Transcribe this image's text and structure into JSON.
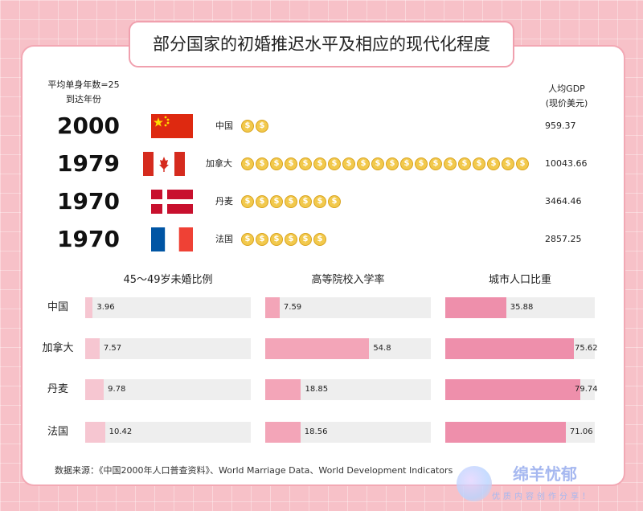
{
  "title": "部分国家的初婚推迟水平及相应的现代化程度",
  "left_header": [
    "平均单身年数=25",
    "到达年份"
  ],
  "right_header": [
    "人均GDP",
    "(现价美元)"
  ],
  "countries": [
    {
      "name": "中国",
      "year": "2000",
      "coins": 2,
      "gdp": "959.37",
      "flag": "china"
    },
    {
      "name": "加拿大",
      "year": "1979",
      "coins": 20,
      "gdp": "10043.66",
      "flag": "canada"
    },
    {
      "name": "丹麦",
      "year": "1970",
      "coins": 7,
      "gdp": "3464.46",
      "flag": "denmark"
    },
    {
      "name": "法国",
      "year": "1970",
      "coins": 6,
      "gdp": "2857.25",
      "flag": "france"
    }
  ],
  "coin_symbol": "$",
  "colors": {
    "background": "#f7c1c8",
    "bar_light": "#f6c6d1",
    "bar_mid": "#f3a5b8",
    "bar_dark": "#ee8fab",
    "track": "#eeeeee",
    "coin": "#f2c94c"
  },
  "chart_data": {
    "type": "bar",
    "orientation": "horizontal",
    "categories": [
      "中国",
      "加拿大",
      "丹麦",
      "法国"
    ],
    "series": [
      {
        "name": "45～49岁未婚比例",
        "values": [
          3.96,
          7.57,
          9.78,
          10.42
        ]
      },
      {
        "name": "高等院校入学率",
        "values": [
          7.59,
          54.8,
          18.85,
          18.56
        ]
      },
      {
        "name": "城市人口比重",
        "values": [
          35.88,
          75.62,
          79.74,
          71.06
        ]
      }
    ],
    "value_labels": [
      [
        "3.96",
        "7.57",
        "9.78",
        "10.42"
      ],
      [
        "7.59",
        "54.8",
        "18.85",
        "18.56"
      ],
      [
        "35.88",
        "75.62",
        "79.74",
        "71.06"
      ]
    ],
    "xlim": [
      0,
      100
    ],
    "legend": "none",
    "grid": false
  },
  "source": "数据来源：《中国2000年人口普查资料》、World Marriage Data、World Development Indicators",
  "watermark": {
    "name": "绵羊忧郁",
    "slogan": "优质内容创作分享！",
    "tag": "知乎"
  }
}
